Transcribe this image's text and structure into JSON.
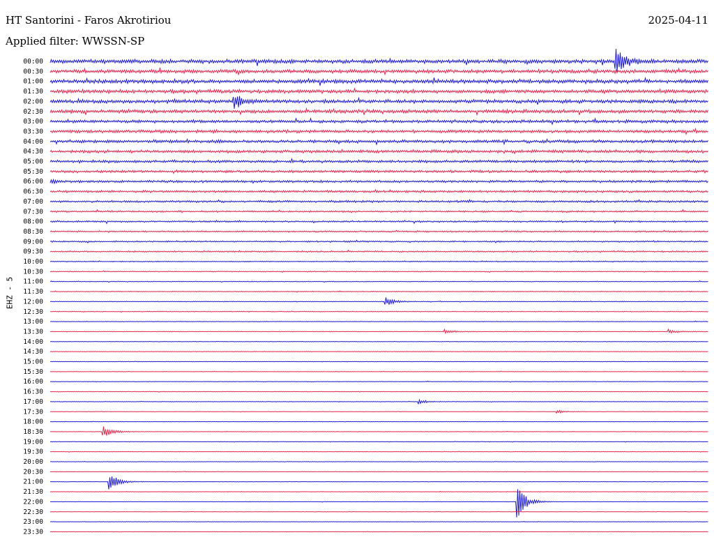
{
  "header": {
    "station": "HT Santorini - Faros Akrotiriou",
    "date": "2025-04-11",
    "filter_label": "Applied filter: WWSSN-SP"
  },
  "chart_data": {
    "type": "line",
    "title": "HT Santorini - Faros Akrotiriou",
    "ylabel": "EHZ - 5",
    "row_labels": [
      "00:00",
      "00:30",
      "01:00",
      "01:30",
      "02:00",
      "02:30",
      "03:00",
      "03:30",
      "04:00",
      "04:30",
      "05:00",
      "05:30",
      "06:00",
      "06:30",
      "07:00",
      "07:30",
      "08:00",
      "08:30",
      "09:00",
      "09:30",
      "10:00",
      "10:30",
      "11:00",
      "11:30",
      "12:00",
      "12:30",
      "13:00",
      "13:30",
      "14:00",
      "14:30",
      "15:00",
      "15:30",
      "16:00",
      "16:30",
      "17:00",
      "17:30",
      "18:00",
      "18:30",
      "19:00",
      "19:30",
      "20:00",
      "20:30",
      "21:00",
      "21:30",
      "22:00",
      "22:30",
      "23:00",
      "23:30"
    ],
    "row_noise_level": [
      0.55,
      0.5,
      0.55,
      0.5,
      0.5,
      0.5,
      0.42,
      0.42,
      0.42,
      0.42,
      0.38,
      0.35,
      0.32,
      0.32,
      0.3,
      0.22,
      0.22,
      0.2,
      0.2,
      0.2,
      0.14,
      0.12,
      0.1,
      0.1,
      0.1,
      0.1,
      0.08,
      0.08,
      0.08,
      0.07,
      0.07,
      0.07,
      0.07,
      0.07,
      0.07,
      0.06,
      0.06,
      0.06,
      0.06,
      0.06,
      0.06,
      0.06,
      0.06,
      0.06,
      0.06,
      0.06,
      0.06,
      0.06
    ],
    "events": [
      {
        "row": 0,
        "pos": 0.86,
        "amp": 3.5
      },
      {
        "row": 4,
        "pos": 0.28,
        "amp": 1.6
      },
      {
        "row": 12,
        "pos": 0.0,
        "amp": 0.3
      },
      {
        "row": 24,
        "pos": 0.51,
        "amp": 1.0
      },
      {
        "row": 27,
        "pos": 0.6,
        "amp": 0.5
      },
      {
        "row": 27,
        "pos": 0.94,
        "amp": 0.5
      },
      {
        "row": 34,
        "pos": 0.56,
        "amp": 0.5
      },
      {
        "row": 35,
        "pos": 0.77,
        "amp": 0.4
      },
      {
        "row": 37,
        "pos": 0.08,
        "amp": 1.6
      },
      {
        "row": 42,
        "pos": 0.09,
        "amp": 2.2
      },
      {
        "row": 44,
        "pos": 0.71,
        "amp": 4.0
      }
    ],
    "colors": [
      "#1a1ad6",
      "#e8254a"
    ]
  }
}
